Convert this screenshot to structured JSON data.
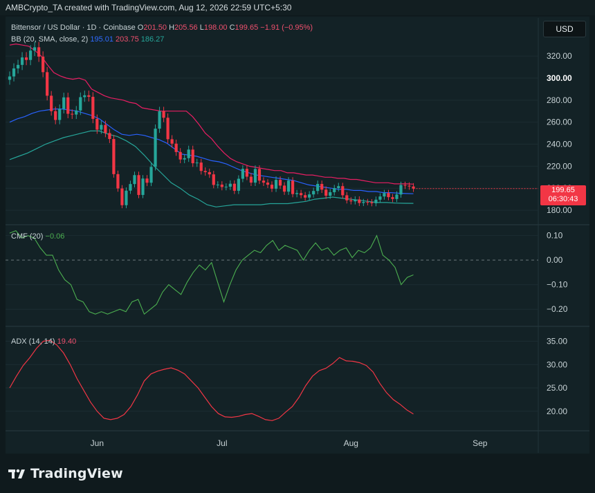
{
  "header": {
    "text": "AMBCrypto_TA created with TradingView.com, Aug 12, 2026 22:59 UTC+5:30"
  },
  "legend_main": {
    "symbol": "Bittensor / US Dollar · 1D · Coinbase",
    "o_label": "O",
    "o": "201.50",
    "h_label": "H",
    "h": "205.56",
    "l_label": "L",
    "l": "198.00",
    "c_label": "C",
    "c": "199.65",
    "change": "−1.91 (−0.95%)"
  },
  "legend_bb": {
    "label": "BB (20, SMA, close, 2)",
    "basis": "195.01",
    "upper": "203.75",
    "lower": "186.27"
  },
  "legend_cmf": {
    "label": "CMF (20)",
    "value": "−0.06"
  },
  "legend_adx": {
    "label": "ADX (14, 14)",
    "value": "19.40"
  },
  "currency_button": "USD",
  "price_tag": {
    "price": "199.65",
    "countdown": "06:30:43"
  },
  "footer": {
    "brand": "TradingView"
  },
  "colors": {
    "up": "#26a69a",
    "down": "#f23645",
    "bb_upper": "#e91e63",
    "bb_basis": "#2962ff",
    "bb_lower": "#26a69a",
    "cmf": "#4caf50",
    "adx": "#f23645"
  },
  "chart_data": [
    {
      "type": "candlestick",
      "title": "Bittensor / US Dollar · 1D · Coinbase",
      "ylim": [
        170,
        332
      ],
      "y_ticks": [
        "180.00",
        "200.00",
        "220.00",
        "240.00",
        "260.00",
        "280.00",
        "300.00",
        "320.00"
      ],
      "x_ticks": [
        "Jun",
        "Jul",
        "Aug",
        "Sep"
      ],
      "tick_dates": [
        "2026-06-01",
        "2026-07-01",
        "2026-08-01",
        "2026-09-01"
      ],
      "x_range": [
        "2026-05-10",
        "2026-09-15"
      ],
      "first_date": "2026-05-11",
      "close": [
        301.5,
        308.8,
        312.0,
        318.8,
        316.5,
        325.0,
        328.0,
        319.5,
        305.4,
        284.0,
        270.0,
        262.0,
        272.0,
        282.5,
        267.6,
        266.9,
        270.6,
        282.7,
        284.4,
        283.0,
        263.0,
        253.2,
        257.5,
        250.1,
        244.7,
        212.8,
        199.8,
        184.6,
        197.8,
        203.8,
        211.9,
        193.9,
        208.8,
        205.0,
        219.4,
        254.1,
        269.9,
        264.0,
        244.5,
        240.5,
        232.9,
        226.1,
        227.3,
        235.1,
        222.7,
        223.3,
        215.7,
        214.6,
        212.6,
        203.0,
        203.3,
        201.1,
        201.4,
        204.1,
        197.7,
        208.6,
        217.6,
        210.5,
        205.1,
        217.5,
        206.9,
        205.1,
        203.2,
        199.6,
        207.6,
        202.4,
        196.9,
        206.9,
        194.7,
        195.6,
        193.7,
        191.5,
        194.4,
        197.5,
        203.9,
        198.7,
        193.2,
        196.4,
        200.1,
        201.9,
        193.6,
        189.0,
        188.1,
        189.8,
        186.6,
        187.5,
        187.3,
        186.4,
        189.6,
        192.5,
        195.6,
        191.9,
        190.2,
        194.3,
        202.9,
        202.3,
        201.6,
        199.65
      ],
      "open_high_low_note": "open = previous close; wicks extend ~1.5% beyond body",
      "bb_upper": [
        330,
        331,
        330,
        329,
        325,
        320,
        312,
        305,
        302,
        300,
        299,
        300,
        298,
        290,
        287,
        284,
        282,
        281,
        280,
        278,
        277,
        273,
        272,
        271,
        270,
        270,
        270,
        270,
        270,
        265,
        258,
        250,
        245,
        238,
        232,
        227,
        224,
        222,
        220,
        219,
        218,
        217,
        216,
        216,
        214,
        214,
        213,
        212,
        212,
        211,
        210,
        210,
        209,
        209,
        208,
        208,
        207,
        206,
        205,
        205,
        205,
        204,
        204,
        204,
        203.75
      ],
      "bb_basis": [
        260,
        263,
        265,
        268,
        270,
        271,
        272,
        272,
        271,
        270,
        268,
        266,
        263,
        258,
        253,
        249,
        248,
        249,
        248,
        246,
        244,
        241,
        236,
        231,
        230,
        229,
        227,
        225,
        224,
        222,
        219,
        216,
        214,
        212,
        211,
        210,
        209,
        208,
        207,
        205,
        203,
        202,
        201,
        200,
        199,
        199,
        198,
        198,
        197,
        197,
        196,
        196,
        195.5,
        195.2,
        195.01
      ],
      "bb_lower": [
        226,
        229,
        232,
        236,
        240,
        243,
        246,
        248,
        250,
        252,
        252,
        249,
        247,
        243,
        238,
        230,
        221,
        213,
        205,
        200,
        194,
        190,
        185,
        183,
        184,
        185,
        185,
        185,
        185,
        186,
        186,
        186,
        187,
        188,
        190,
        191,
        192,
        191,
        190,
        189,
        188,
        187,
        187,
        186.5,
        186.3,
        186.27
      ],
      "cmf": [
        0.11,
        0.12,
        0.09,
        0.1,
        0.09,
        0.05,
        0.02,
        0.02,
        -0.04,
        -0.08,
        -0.1,
        -0.16,
        -0.17,
        -0.21,
        -0.22,
        -0.21,
        -0.22,
        -0.21,
        -0.2,
        -0.21,
        -0.17,
        -0.16,
        -0.22,
        -0.2,
        -0.18,
        -0.13,
        -0.1,
        -0.12,
        -0.14,
        -0.09,
        -0.05,
        -0.02,
        -0.04,
        -0.01,
        -0.09,
        -0.17,
        -0.1,
        -0.04,
        0.0,
        0.02,
        0.04,
        0.03,
        0.06,
        0.08,
        0.04,
        0.06,
        0.05,
        0.04,
        0.0,
        0.04,
        0.07,
        0.04,
        0.05,
        0.02,
        0.04,
        0.05,
        0.01,
        0.04,
        0.03,
        0.05,
        0.1,
        0.02,
        0.0,
        -0.03,
        -0.1,
        -0.07,
        -0.06
      ],
      "cmf_ylim": [
        -0.25,
        0.13
      ],
      "adx": [
        25.0,
        27.5,
        29.8,
        31.5,
        33.5,
        35.0,
        35.2,
        34.2,
        32.5,
        30.0,
        27.0,
        24.5,
        22.0,
        20.0,
        18.5,
        18.2,
        18.5,
        19.3,
        21.0,
        23.5,
        26.5,
        28.0,
        28.6,
        29.0,
        29.3,
        28.8,
        28.0,
        26.5,
        25.0,
        23.0,
        21.0,
        19.5,
        18.8,
        18.7,
        18.9,
        19.3,
        19.5,
        18.9,
        18.2,
        18.0,
        18.5,
        19.8,
        21.0,
        23.0,
        25.5,
        27.5,
        28.7,
        29.2,
        30.2,
        31.5,
        30.8,
        30.7,
        30.4,
        29.8,
        28.4,
        26.0,
        24.0,
        22.5,
        21.5,
        20.3,
        19.4
      ],
      "adx_ylim": [
        17.0,
        37.0
      ]
    }
  ]
}
